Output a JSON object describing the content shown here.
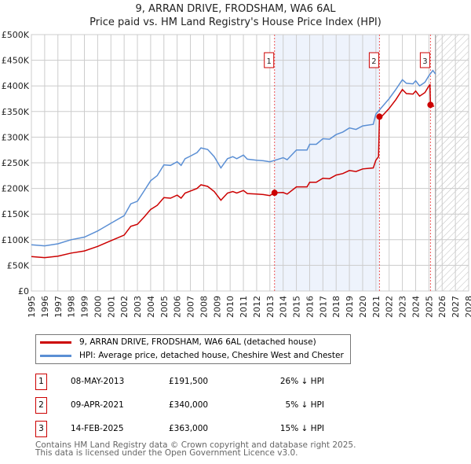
{
  "chart_data": {
    "type": "line",
    "title": "9, ARRAN DRIVE, FRODSHAM, WA6 6AL",
    "subtitle": "Price paid vs. HM Land Registry's House Price Index (HPI)",
    "xlim": [
      1995,
      2028
    ],
    "ylim": [
      0,
      500000
    ],
    "x_ticks": [
      "1995",
      "1996",
      "1997",
      "1998",
      "1999",
      "2000",
      "2001",
      "2002",
      "2003",
      "2004",
      "2005",
      "2006",
      "2007",
      "2008",
      "2009",
      "2010",
      "2011",
      "2012",
      "2013",
      "2014",
      "2015",
      "2016",
      "2017",
      "2018",
      "2019",
      "2020",
      "2021",
      "2022",
      "2023",
      "2024",
      "2025",
      "2026",
      "2027",
      "2028"
    ],
    "y_ticks": [
      {
        "v": 0,
        "label": "£0"
      },
      {
        "v": 50000,
        "label": "£50K"
      },
      {
        "v": 100000,
        "label": "£100K"
      },
      {
        "v": 150000,
        "label": "£150K"
      },
      {
        "v": 200000,
        "label": "£200K"
      },
      {
        "v": 250000,
        "label": "£250K"
      },
      {
        "v": 300000,
        "label": "£300K"
      },
      {
        "v": 350000,
        "label": "£350K"
      },
      {
        "v": 400000,
        "label": "£400K"
      },
      {
        "v": 450000,
        "label": "£450K"
      },
      {
        "v": 500000,
        "label": "£500K"
      }
    ],
    "grid": true,
    "shaded_range": [
      2013.35,
      2021.27
    ],
    "forecast_hatch_from": 2025.5,
    "series": [
      {
        "name": "9, ARRAN DRIVE, FRODSHAM, WA6 6AL (detached house)",
        "color": "#cc0000",
        "x": [
          1995,
          1996,
          1997,
          1998,
          1999,
          2000,
          2001,
          2002,
          2002.5,
          2003,
          2003.5,
          2004,
          2004.5,
          2005,
          2005.5,
          2006,
          2006.3,
          2006.6,
          2007,
          2007.5,
          2007.8,
          2008.3,
          2008.8,
          2009.3,
          2009.8,
          2010.2,
          2010.5,
          2011,
          2011.3,
          2012,
          2012.5,
          2013,
          2013.35,
          2014,
          2014.3,
          2015,
          2015.8,
          2016,
          2016.5,
          2017,
          2017.5,
          2018,
          2018.5,
          2019,
          2019.5,
          2020,
          2020.8,
          2021,
          2021.2,
          2021.27,
          2021.5,
          2022,
          2022.5,
          2023,
          2023.3,
          2023.8,
          2024,
          2024.3,
          2024.7,
          2025,
          2025.08,
          2025.12,
          2025.4
        ],
        "y": [
          67,
          65,
          68,
          74,
          78,
          87,
          98,
          109,
          126,
          130,
          144,
          159,
          167,
          182,
          181,
          187,
          181,
          191,
          195,
          200,
          207,
          204,
          194,
          177,
          191,
          194,
          191,
          196,
          190,
          189,
          188,
          186,
          191.5,
          192,
          189,
          203,
          203,
          212,
          212,
          220,
          219,
          226,
          229,
          235,
          233,
          238,
          240,
          255,
          262,
          340,
          342,
          356,
          373,
          393,
          385,
          384,
          390,
          380,
          387,
          400,
          402,
          363,
          360
        ]
      },
      {
        "name": "HPI: Average price, detached house, Cheshire West and Chester",
        "color": "#5b8fd4",
        "x": [
          1995,
          1996,
          1997,
          1998,
          1999,
          2000,
          2001,
          2002,
          2002.5,
          2003,
          2003.5,
          2004,
          2004.5,
          2005,
          2005.5,
          2006,
          2006.3,
          2006.6,
          2007,
          2007.5,
          2007.8,
          2008.3,
          2008.8,
          2009.3,
          2009.8,
          2010.2,
          2010.5,
          2011,
          2011.3,
          2012,
          2012.5,
          2013,
          2013.4,
          2014,
          2014.3,
          2015,
          2015.8,
          2016,
          2016.5,
          2017,
          2017.5,
          2018,
          2018.5,
          2019,
          2019.5,
          2020,
          2020.8,
          2021,
          2021.5,
          2022,
          2022.5,
          2023,
          2023.3,
          2023.8,
          2024,
          2024.3,
          2024.7,
          2025,
          2025.3,
          2025.5
        ],
        "y": [
          90,
          88,
          92,
          100,
          105,
          117,
          132,
          147,
          170,
          175,
          195,
          215,
          225,
          246,
          245,
          252,
          245,
          258,
          263,
          270,
          279,
          276,
          262,
          240,
          258,
          262,
          258,
          265,
          257,
          255,
          254,
          252,
          255,
          260,
          256,
          275,
          275,
          286,
          286,
          297,
          296,
          305,
          310,
          318,
          315,
          322,
          325,
          345,
          360,
          375,
          393,
          412,
          405,
          404,
          410,
          400,
          407,
          420,
          430,
          423
        ]
      }
    ],
    "y_units": "thousands GBP",
    "sales": [
      {
        "n": "1",
        "x": 2013.35,
        "date": "08-MAY-2013",
        "price_v": 191.5,
        "price": "£191,500",
        "hpi": "26% ↓ HPI"
      },
      {
        "n": "2",
        "x": 2021.27,
        "date": "09-APR-2021",
        "price_v": 340,
        "price": "£340,000",
        "hpi": "5% ↓ HPI"
      },
      {
        "n": "3",
        "x": 2025.12,
        "date": "14-FEB-2025",
        "price_v": 363,
        "price": "£363,000",
        "hpi": "15% ↓ HPI"
      }
    ]
  },
  "footer": {
    "line1": "Contains HM Land Registry data © Crown copyright and database right 2025.",
    "line2": "This data is licensed under the Open Government Licence v3.0."
  }
}
